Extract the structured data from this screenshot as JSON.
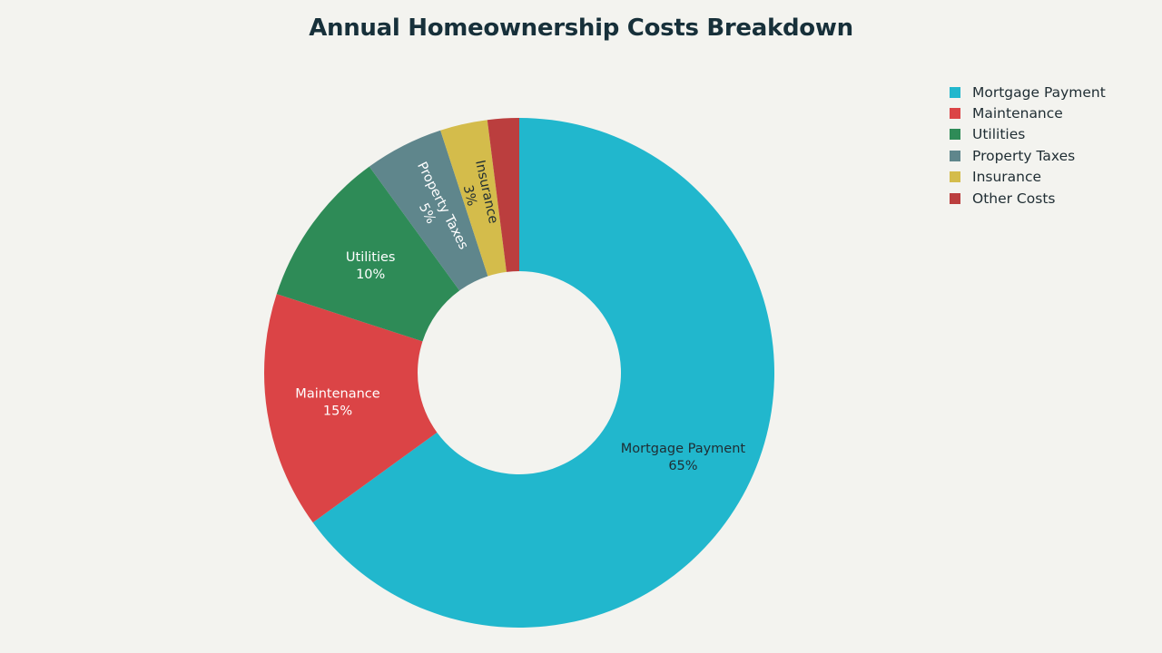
{
  "chart_data": {
    "type": "pie",
    "title": "Annual Homeownership Costs Breakdown",
    "hole": true,
    "legend_position": "top-right",
    "slices": [
      {
        "label": "Mortgage Payment",
        "value": 65,
        "value_label": "65%",
        "color": "#21b7cd",
        "label_color": "#1f2d33"
      },
      {
        "label": "Maintenance",
        "value": 15,
        "value_label": "15%",
        "color": "#db4446",
        "label_color": "#ffffff"
      },
      {
        "label": "Utilities",
        "value": 10,
        "value_label": "10%",
        "color": "#2e8b57",
        "label_color": "#ffffff"
      },
      {
        "label": "Property Taxes",
        "value": 5,
        "value_label": "5%",
        "color": "#5f868c",
        "label_color": "#ffffff"
      },
      {
        "label": "Insurance",
        "value": 3,
        "value_label": "3%",
        "color": "#d4bc4b",
        "label_color": "#1f2d33"
      },
      {
        "label": "Other Costs",
        "value": 2,
        "value_label": "",
        "color": "#bb3e3e",
        "label_color": "#ffffff"
      }
    ]
  }
}
